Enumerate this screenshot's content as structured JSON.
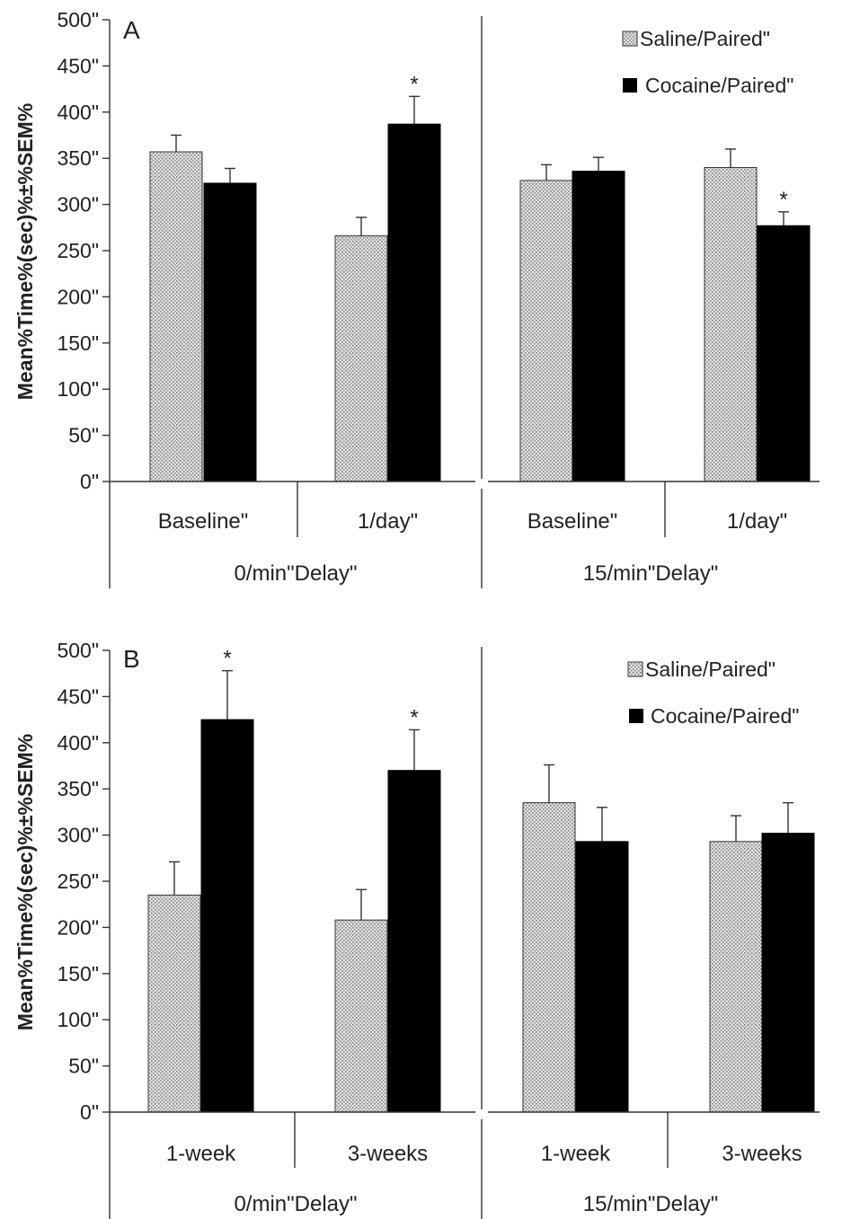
{
  "figure": {
    "ylabel": "Mean%Time%(sec)%±%SEM%",
    "colors": {
      "saline_fill": "#d9d9d9",
      "saline_dots": "#7a7a7a",
      "cocaine_fill": "#000000",
      "axis": "#333333"
    }
  },
  "chart_data": [
    {
      "type": "bar",
      "panel_label": "A",
      "ylabel": "Mean%Time%(sec)%±%SEM%",
      "ylim": [
        0,
        500
      ],
      "y_ticks": [
        "0\"",
        "50\"",
        "100\"",
        "150\"",
        "200\"",
        "250\"",
        "300\"",
        "350\"",
        "400\"",
        "450\"",
        "500\""
      ],
      "legend": {
        "placement": "top-right",
        "entries": [
          "Saline/Paired\"",
          "Cocaine/Paired\""
        ]
      },
      "groups": [
        {
          "label": "0/min\"Delay\"",
          "categories": [
            "Baseline\"",
            "1/day\""
          ]
        },
        {
          "label": "15/min\"Delay\"",
          "categories": [
            "Baseline\"",
            "1/day\""
          ]
        }
      ],
      "series": [
        {
          "name": "Saline/Paired\"",
          "values": [
            357,
            266,
            326,
            340
          ],
          "errors": [
            18,
            20,
            17,
            20
          ],
          "significant": [
            false,
            false,
            false,
            false
          ]
        },
        {
          "name": "Cocaine/Paired\"",
          "values": [
            323,
            387,
            336,
            277
          ],
          "errors": [
            16,
            30,
            15,
            15
          ],
          "significant": [
            false,
            true,
            false,
            true
          ]
        }
      ],
      "significance_marker": "*"
    },
    {
      "type": "bar",
      "panel_label": "B",
      "ylabel": "Mean%Time%(sec)%±%SEM%",
      "ylim": [
        0,
        500
      ],
      "y_ticks": [
        "0\"",
        "50\"",
        "100\"",
        "150\"",
        "200\"",
        "250\"",
        "300\"",
        "350\"",
        "400\"",
        "450\"",
        "500\""
      ],
      "legend": {
        "placement": "top-right",
        "entries": [
          "Saline/Paired\"",
          "Cocaine/Paired\""
        ]
      },
      "groups": [
        {
          "label": "0/min\"Delay\"",
          "categories": [
            "1-week",
            "3-weeks"
          ]
        },
        {
          "label": "15/min\"Delay\"",
          "categories": [
            "1-week",
            "3-weeks"
          ]
        }
      ],
      "series": [
        {
          "name": "Saline/Paired\"",
          "values": [
            235,
            208,
            335,
            293
          ],
          "errors": [
            36,
            33,
            41,
            28
          ],
          "significant": [
            false,
            false,
            false,
            false
          ]
        },
        {
          "name": "Cocaine/Paired\"",
          "values": [
            425,
            370,
            293,
            302
          ],
          "errors": [
            53,
            44,
            37,
            33
          ],
          "significant": [
            true,
            true,
            false,
            false
          ]
        }
      ],
      "significance_marker": "*"
    }
  ]
}
